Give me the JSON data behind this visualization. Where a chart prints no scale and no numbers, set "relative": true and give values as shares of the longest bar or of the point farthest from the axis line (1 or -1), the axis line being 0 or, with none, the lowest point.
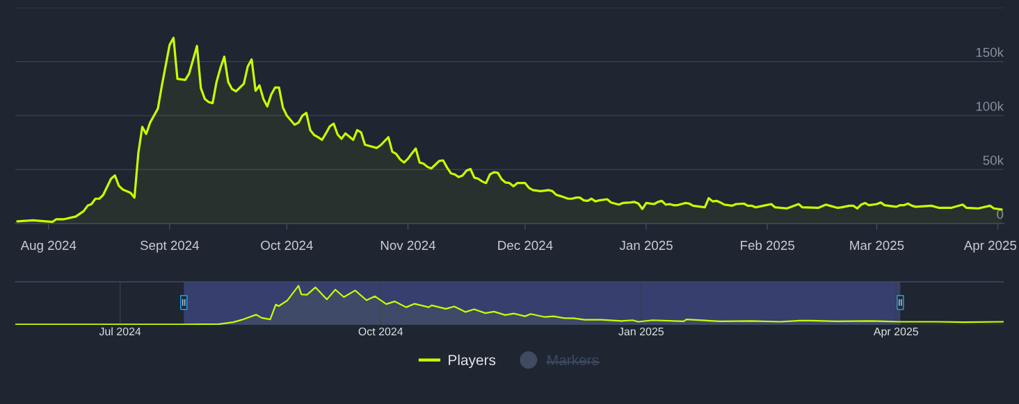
{
  "chart_data": [
    {
      "type": "area",
      "x": [
        "2024-07-24",
        "2024-07-28",
        "2024-08-02",
        "2024-08-03",
        "2024-08-05",
        "2024-08-08",
        "2024-08-10",
        "2024-08-11",
        "2024-08-12",
        "2024-08-13",
        "2024-08-14",
        "2024-08-15",
        "2024-08-17",
        "2024-08-18",
        "2024-08-19",
        "2024-08-20",
        "2024-08-22",
        "2024-08-23",
        "2024-08-24",
        "2024-08-25",
        "2024-08-26",
        "2024-08-27",
        "2024-08-28",
        "2024-08-29",
        "2024-08-30",
        "2024-09-01",
        "2024-09-02",
        "2024-09-03",
        "2024-09-05",
        "2024-09-06",
        "2024-09-08",
        "2024-09-09",
        "2024-09-10",
        "2024-09-11",
        "2024-09-12",
        "2024-09-13",
        "2024-09-14",
        "2024-09-15",
        "2024-09-16",
        "2024-09-17",
        "2024-09-18",
        "2024-09-20",
        "2024-09-21",
        "2024-09-22",
        "2024-09-23",
        "2024-09-24",
        "2024-09-25",
        "2024-09-26",
        "2024-09-27",
        "2024-09-28",
        "2024-09-29",
        "2024-09-30",
        "2024-10-01",
        "2024-10-03",
        "2024-10-04",
        "2024-10-05",
        "2024-10-06",
        "2024-10-07",
        "2024-10-08",
        "2024-10-09",
        "2024-10-10",
        "2024-10-11",
        "2024-10-12",
        "2024-10-13",
        "2024-10-14",
        "2024-10-15",
        "2024-10-16",
        "2024-10-17",
        "2024-10-18",
        "2024-10-19",
        "2024-10-20",
        "2024-10-21",
        "2024-10-22",
        "2024-10-24",
        "2024-10-25",
        "2024-10-27",
        "2024-10-28",
        "2024-10-29",
        "2024-10-30",
        "2024-10-31",
        "2024-11-01",
        "2024-11-02",
        "2024-11-03",
        "2024-11-04",
        "2024-11-05",
        "2024-11-06",
        "2024-11-07",
        "2024-11-08",
        "2024-11-09",
        "2024-11-10",
        "2024-11-11",
        "2024-11-12",
        "2024-11-13",
        "2024-11-14",
        "2024-11-15",
        "2024-11-16",
        "2024-11-17",
        "2024-11-18",
        "2024-11-19",
        "2024-11-20",
        "2024-11-21",
        "2024-11-22",
        "2024-11-23",
        "2024-11-24",
        "2024-11-25",
        "2024-11-26",
        "2024-11-27",
        "2024-11-28",
        "2024-11-29",
        "2024-12-01",
        "2024-12-02",
        "2024-12-03",
        "2024-12-05",
        "2024-12-07",
        "2024-12-08",
        "2024-12-09",
        "2024-12-10",
        "2024-12-12",
        "2024-12-13",
        "2024-12-14",
        "2024-12-15",
        "2024-12-16",
        "2024-12-17",
        "2024-12-18",
        "2024-12-19",
        "2024-12-20",
        "2024-12-22",
        "2024-12-23",
        "2024-12-25",
        "2024-12-26",
        "2024-12-28",
        "2024-12-29",
        "2024-12-30",
        "2024-12-31",
        "2025-01-01",
        "2025-01-03",
        "2025-01-04",
        "2025-01-05",
        "2025-01-06",
        "2025-01-07",
        "2025-01-08",
        "2025-01-09",
        "2025-01-11",
        "2025-01-12",
        "2025-01-13",
        "2025-01-14",
        "2025-01-16",
        "2025-01-17",
        "2025-01-18",
        "2025-01-19",
        "2025-01-20",
        "2025-01-21",
        "2025-01-23",
        "2025-01-24",
        "2025-01-26",
        "2025-01-27",
        "2025-01-28",
        "2025-01-29",
        "2025-01-31",
        "2025-02-02",
        "2025-02-03",
        "2025-02-06",
        "2025-02-09",
        "2025-02-10",
        "2025-02-14",
        "2025-02-16",
        "2025-02-17",
        "2025-02-19",
        "2025-02-20",
        "2025-02-22",
        "2025-02-23",
        "2025-02-24",
        "2025-02-25",
        "2025-02-26",
        "2025-02-27",
        "2025-03-01",
        "2025-03-02",
        "2025-03-03",
        "2025-03-06",
        "2025-03-07",
        "2025-03-08",
        "2025-03-09",
        "2025-03-10",
        "2025-03-11",
        "2025-03-15",
        "2025-03-17",
        "2025-03-20",
        "2025-03-23",
        "2025-03-24",
        "2025-03-27",
        "2025-03-30",
        "2025-03-31",
        "2025-04-02"
      ],
      "series": [
        {
          "name": "Players",
          "color": "#c8ff00",
          "values": [
            2000,
            3000,
            1500,
            4000,
            4000,
            6500,
            11500,
            16500,
            18000,
            23000,
            23000,
            26500,
            41500,
            44500,
            35000,
            31500,
            28500,
            24000,
            65500,
            89500,
            83000,
            93500,
            100000,
            106500,
            127500,
            165500,
            172000,
            134000,
            133000,
            139000,
            164500,
            125500,
            115500,
            112500,
            111500,
            131000,
            144000,
            154500,
            131000,
            124500,
            122500,
            129500,
            145500,
            152000,
            123000,
            128000,
            115500,
            108500,
            119500,
            126000,
            126000,
            107500,
            100000,
            91500,
            93500,
            100000,
            102500,
            86500,
            82000,
            80000,
            77500,
            83500,
            90000,
            92500,
            82500,
            78500,
            83500,
            80500,
            77500,
            86500,
            84500,
            73000,
            72000,
            70000,
            72500,
            80000,
            66500,
            64500,
            59500,
            56500,
            60000,
            65000,
            69500,
            56500,
            55500,
            52500,
            51000,
            54500,
            58000,
            58500,
            52000,
            46500,
            45500,
            43000,
            44500,
            49000,
            50500,
            42500,
            41500,
            39000,
            37500,
            45500,
            47500,
            47000,
            41000,
            38000,
            37500,
            34500,
            37500,
            37500,
            33000,
            31000,
            30000,
            31000,
            30000,
            26500,
            25500,
            23000,
            23000,
            24000,
            24000,
            21500,
            21000,
            23000,
            20500,
            21500,
            22500,
            19500,
            17500,
            19000,
            19500,
            20000,
            18500,
            13500,
            19000,
            18000,
            20000,
            21000,
            17500,
            18000,
            17000,
            17000,
            19000,
            18500,
            16500,
            16000,
            15000,
            23500,
            20500,
            21000,
            19500,
            17500,
            16500,
            18000,
            18500,
            16500,
            16500,
            15000,
            16500,
            18000,
            15000,
            14000,
            18000,
            15000,
            14500,
            17500,
            16500,
            14500,
            15000,
            16500,
            16500,
            14000,
            17500,
            19000,
            17000,
            18000,
            19500,
            17000,
            15500,
            17000,
            17000,
            18500,
            16500,
            15500,
            16500,
            14500,
            14500,
            17500,
            14500,
            14000,
            16500,
            14000,
            13000
          ]
        },
        {
          "name": "Markers",
          "type": "scatter",
          "color": "#3e4b61",
          "values": [
            null,
            null,
            null,
            null,
            null,
            null,
            null,
            null,
            null,
            null,
            null,
            null,
            null,
            null,
            null,
            null,
            null,
            null,
            null,
            null,
            null,
            null,
            null,
            null,
            null,
            null,
            null,
            null,
            null,
            null,
            null,
            null,
            null,
            null,
            null,
            null,
            null,
            null,
            null,
            null,
            null,
            null,
            null,
            null,
            null,
            null,
            null,
            null,
            null,
            null,
            null,
            null,
            null,
            null,
            null,
            null,
            null,
            null,
            null,
            null,
            null,
            null,
            null,
            null,
            null,
            null,
            null,
            null,
            null,
            null,
            null,
            null,
            null,
            null,
            null,
            null,
            null,
            null,
            null,
            null,
            null,
            null,
            null,
            null,
            null,
            null,
            null,
            null,
            null,
            null,
            null,
            null,
            null,
            null,
            null,
            null,
            null,
            null,
            null,
            null,
            null,
            null,
            null,
            null,
            null,
            null,
            null,
            null,
            null,
            null,
            null,
            null,
            null,
            null,
            null,
            null,
            null,
            null,
            null,
            null,
            null,
            null,
            null,
            null,
            null,
            null,
            null,
            null,
            null,
            null,
            null,
            null,
            null,
            null,
            null,
            null,
            null,
            null,
            null,
            null,
            null,
            null,
            null,
            null,
            null,
            null,
            null,
            null,
            null,
            null,
            null,
            null,
            null,
            null,
            null,
            null,
            null,
            null,
            null,
            null,
            null,
            null,
            null,
            null,
            null,
            null,
            null,
            null,
            null,
            null,
            null,
            null,
            null,
            null,
            null,
            null,
            null,
            null,
            null,
            null,
            null,
            null,
            null,
            null,
            null,
            null,
            null,
            null,
            null,
            null,
            null,
            null,
            null
          ]
        }
      ],
      "xlim": [
        "2024-07-23T12:00",
        "2025-04-02T12:00"
      ],
      "xticks": [
        {
          "value": "2024-08-01",
          "label": "Aug 2024"
        },
        {
          "value": "2024-09-01",
          "label": "Sept 2024"
        },
        {
          "value": "2024-10-01",
          "label": "Oct 2024"
        },
        {
          "value": "2024-11-01",
          "label": "Nov 2024"
        },
        {
          "value": "2024-12-01",
          "label": "Dec 2024"
        },
        {
          "value": "2025-01-01",
          "label": "Jan 2025"
        },
        {
          "value": "2025-02-01",
          "label": "Feb 2025"
        },
        {
          "value": "2025-03-01",
          "label": "Mar 2025"
        },
        {
          "value": "2025-04-01",
          "label": "Apr 2025"
        }
      ],
      "ylim": [
        0,
        200000
      ],
      "yticks": [
        0,
        {
          "value": 50000,
          "label": "50k"
        },
        {
          "value": 100000,
          "label": "100k"
        },
        {
          "value": 150000,
          "label": "150k"
        },
        {
          "value": 200000,
          "label": null
        }
      ],
      "grid": "y",
      "legend": "bottom"
    },
    {
      "type": "area",
      "relative": true,
      "x": [
        "2024-05-25",
        "2024-06-20",
        "2024-07-24",
        "2024-08-05",
        "2024-08-10",
        "2024-08-13",
        "2024-08-18",
        "2024-08-20",
        "2024-08-23",
        "2024-08-25",
        "2024-08-26",
        "2024-08-29",
        "2024-09-02",
        "2024-09-03",
        "2024-09-05",
        "2024-09-08",
        "2024-09-12",
        "2024-09-15",
        "2024-09-18",
        "2024-09-22",
        "2024-09-26",
        "2024-09-29",
        "2024-10-03",
        "2024-10-06",
        "2024-10-10",
        "2024-10-13",
        "2024-10-18",
        "2024-10-19",
        "2024-10-24",
        "2024-10-27",
        "2024-10-31",
        "2024-11-03",
        "2024-11-07",
        "2024-11-10",
        "2024-11-14",
        "2024-11-17",
        "2024-11-21",
        "2024-11-23",
        "2024-11-28",
        "2024-12-01",
        "2024-12-05",
        "2024-12-08",
        "2024-12-12",
        "2024-12-18",
        "2024-12-25",
        "2024-12-29",
        "2024-12-31",
        "2025-01-05",
        "2025-01-16",
        "2025-01-17",
        "2025-01-29",
        "2025-02-09",
        "2025-02-19",
        "2025-02-26",
        "2025-03-02",
        "2025-03-11",
        "2025-03-23",
        "2025-04-02",
        "2025-04-15",
        "2025-04-25",
        "2025-05-09"
      ],
      "series": [
        {
          "color": "#c8ff00",
          "values": [
            0.01,
            0.01,
            0.01,
            0.02,
            0.07,
            0.13,
            0.26,
            0.18,
            0.14,
            0.52,
            0.48,
            0.62,
            1.0,
            0.78,
            0.77,
            0.96,
            0.65,
            0.9,
            0.71,
            0.88,
            0.63,
            0.73,
            0.53,
            0.6,
            0.45,
            0.54,
            0.45,
            0.5,
            0.41,
            0.47,
            0.33,
            0.4,
            0.3,
            0.34,
            0.25,
            0.29,
            0.22,
            0.28,
            0.2,
            0.22,
            0.17,
            0.17,
            0.13,
            0.13,
            0.1,
            0.12,
            0.08,
            0.12,
            0.09,
            0.14,
            0.09,
            0.1,
            0.08,
            0.11,
            0.11,
            0.09,
            0.1,
            0.08,
            0.08,
            0.07,
            0.08
          ]
        }
      ],
      "xlim": [
        "2024-05-25",
        "2025-05-09"
      ],
      "xticks": [
        {
          "value": "2024-07-01",
          "label": "Jul 2024"
        },
        {
          "value": "2024-10-01",
          "label": "Oct 2024"
        },
        {
          "value": "2025-01-01",
          "label": "Jan 2025"
        },
        {
          "value": "2025-04-01",
          "label": "Apr 2025"
        }
      ],
      "grid": "x",
      "tick_labels": "x",
      "bands": [
        {
          "axis": "x",
          "from": "2024-07-23T12:00",
          "to": "2025-04-02T12:00",
          "color": "#363f6e"
        }
      ]
    }
  ]
}
